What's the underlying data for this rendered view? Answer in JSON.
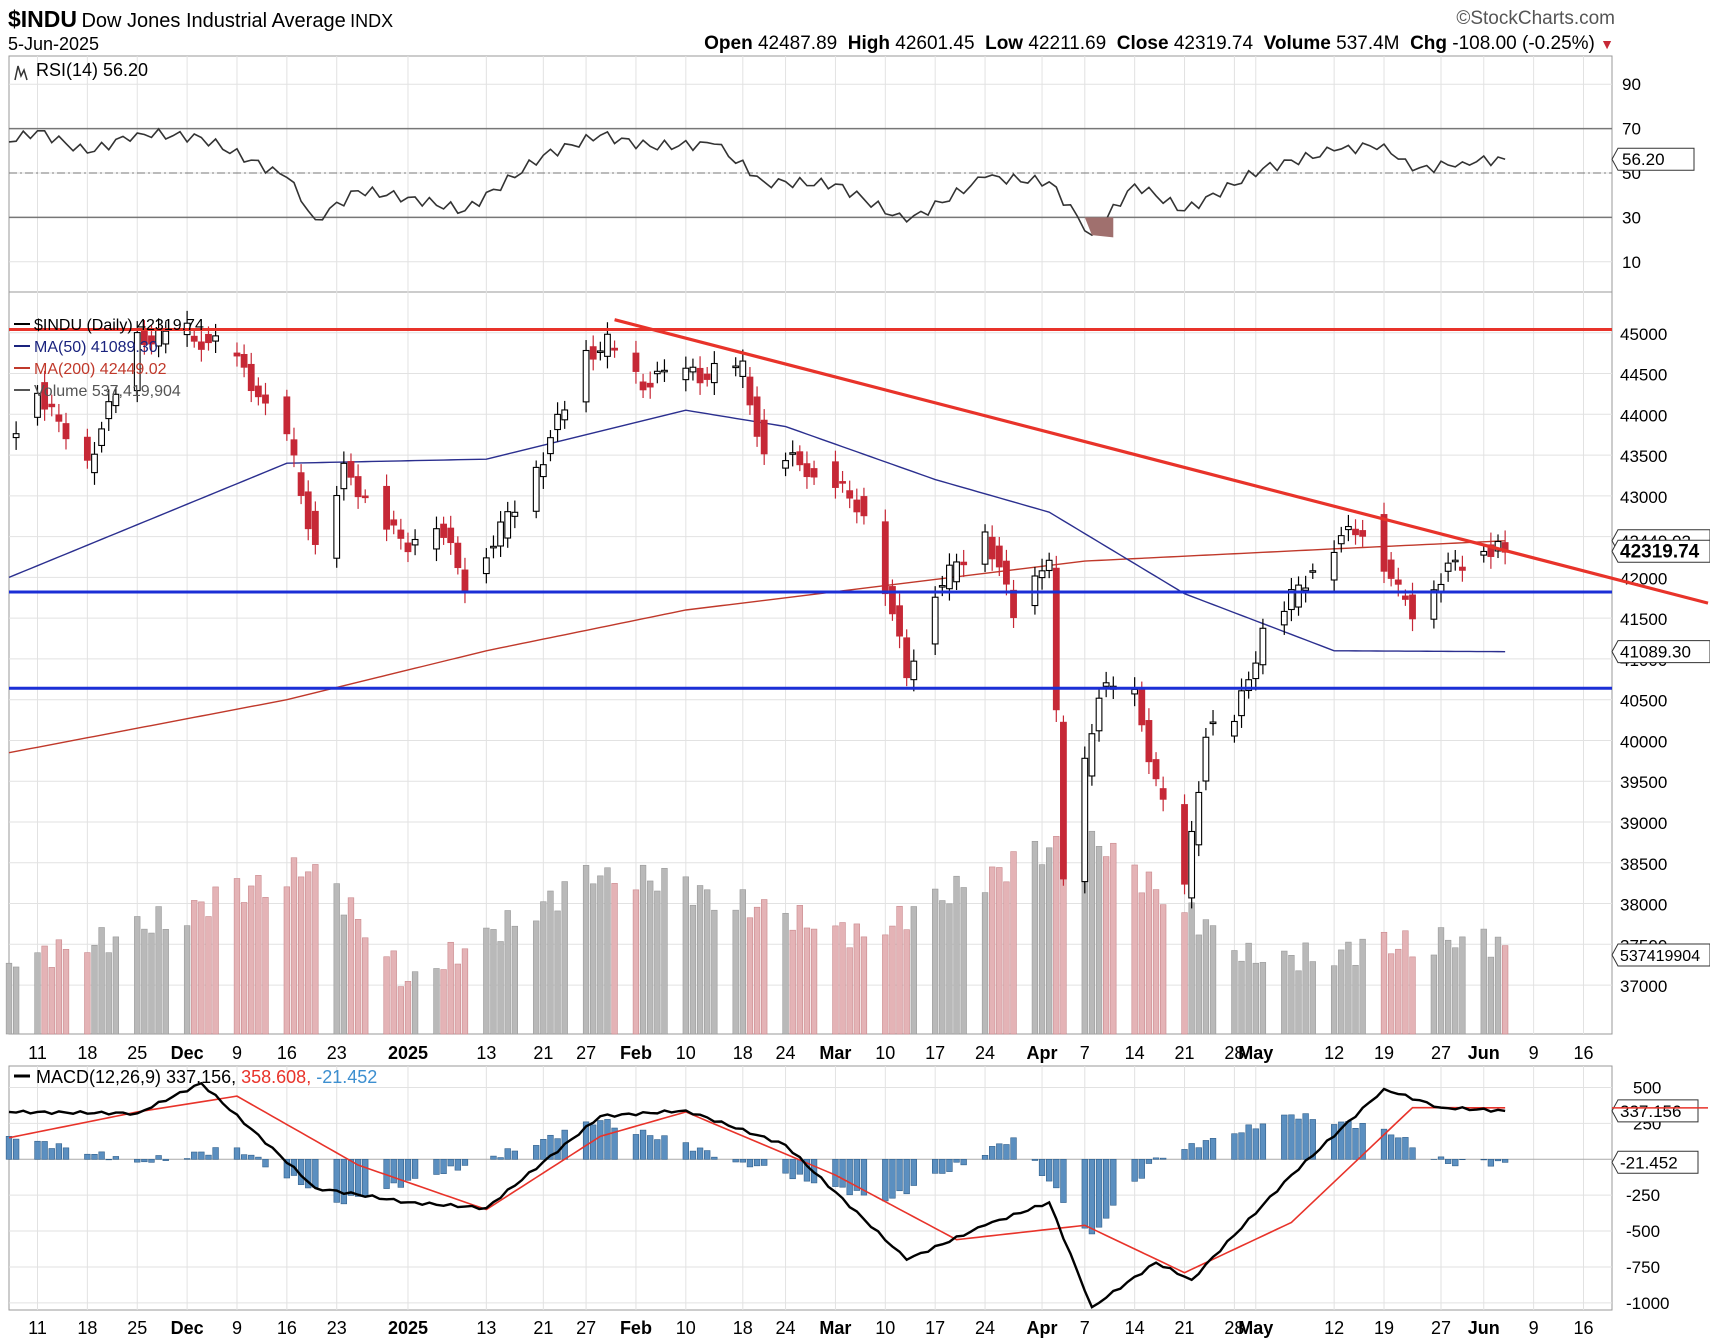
{
  "header": {
    "symbol": "$INDU",
    "name": "Dow Jones Industrial Average",
    "exchange": "INDX",
    "date": "5-Jun-2025",
    "brand": "©StockCharts.com",
    "open_label": "Open",
    "open": "42487.89",
    "high_label": "High",
    "high": "42601.45",
    "low_label": "Low",
    "low": "42211.69",
    "close_label": "Close",
    "close": "42319.74",
    "volume_label": "Volume",
    "volume": "537.4M",
    "chg_label": "Chg",
    "chg": "-108.00 (-0.25%)"
  },
  "rsi": {
    "label": "RSI(14) 56.20",
    "badge": "56.20",
    "ticks": [
      90,
      70,
      50,
      30,
      10
    ],
    "range": [
      0,
      100
    ],
    "overbought": 70,
    "oversold": 30,
    "centerline": 50
  },
  "price_panel": {
    "legend": [
      "$INDU (Daily) 42319.74",
      "MA(50) 41089.30",
      "MA(200) 42449.02",
      "Volume 537,419,904"
    ],
    "legend_colors": [
      "#000000",
      "#1a237e",
      "#c0392b",
      "#555555"
    ],
    "close_badge": "42319.74",
    "ma200_badge": "42449.02",
    "ma50_badge": "41089.30",
    "volume_badge": "537419904",
    "ticks": [
      45000,
      44500,
      44000,
      43500,
      43000,
      42500,
      42000,
      41500,
      41000,
      40500,
      40000,
      39500,
      39000,
      38500,
      38000,
      37500,
      37000
    ],
    "range": [
      36400,
      45500
    ],
    "resistance": 45040,
    "support_upper": 41820,
    "support_lower": 40640,
    "trendline": {
      "from": [
        "2025-01-31",
        45160
      ],
      "to": [
        "2025-06-16",
        42080
      ]
    },
    "colors": {
      "up": "#ffffff",
      "down": "#c62836",
      "grid": "#d9d9d9",
      "line_red": "#e8332a",
      "line_blue": "#1b2fd6"
    }
  },
  "macd": {
    "label_prefix": "MACD(12,26,9)",
    "macd_value": "337.156",
    "signal_value": "358.608",
    "hist_value": "-21.452",
    "badge_macd": "337.156",
    "badge_hist": "-21.452",
    "ticks": [
      500,
      250,
      -250,
      -500,
      -750,
      -1000
    ],
    "range": [
      -1050,
      650
    ],
    "colors": {
      "macd": "#000000",
      "signal": "#e8332a",
      "hist": "#5b8fc0"
    }
  },
  "x_axis": {
    "labels": [
      {
        "t": "11",
        "bold": false
      },
      {
        "t": "18",
        "bold": false
      },
      {
        "t": "25",
        "bold": false
      },
      {
        "t": "Dec",
        "bold": true
      },
      {
        "t": "9",
        "bold": false
      },
      {
        "t": "16",
        "bold": false
      },
      {
        "t": "23",
        "bold": false
      },
      {
        "t": "2025",
        "bold": true
      },
      {
        "t": "13",
        "bold": false
      },
      {
        "t": "21",
        "bold": false
      },
      {
        "t": "27",
        "bold": false
      },
      {
        "t": "Feb",
        "bold": true
      },
      {
        "t": "10",
        "bold": false
      },
      {
        "t": "18",
        "bold": false
      },
      {
        "t": "24",
        "bold": false
      },
      {
        "t": "Mar",
        "bold": true
      },
      {
        "t": "10",
        "bold": false
      },
      {
        "t": "17",
        "bold": false
      },
      {
        "t": "24",
        "bold": false
      },
      {
        "t": "Apr",
        "bold": true
      },
      {
        "t": "7",
        "bold": false
      },
      {
        "t": "14",
        "bold": false
      },
      {
        "t": "21",
        "bold": false
      },
      {
        "t": "28",
        "bold": false
      },
      {
        "t": "May",
        "bold": true
      },
      {
        "t": "12",
        "bold": false
      },
      {
        "t": "19",
        "bold": false
      },
      {
        "t": "27",
        "bold": false
      },
      {
        "t": "Jun",
        "bold": true
      },
      {
        "t": "9",
        "bold": false
      },
      {
        "t": "16",
        "bold": false
      }
    ]
  },
  "chart_data": {
    "type": "candlestick",
    "title": "$INDU Dow Jones Industrial Average INDX",
    "x_range": [
      "2024-11-07",
      "2025-06-20"
    ],
    "price_series": [
      {
        "date": "2024-11-07",
        "close": 43730
      },
      {
        "date": "2024-11-11",
        "close": 44290
      },
      {
        "date": "2024-11-18",
        "close": 43400
      },
      {
        "date": "2024-11-25",
        "close": 44910
      },
      {
        "date": "2024-12-02",
        "close": 45010
      },
      {
        "date": "2024-12-09",
        "close": 44640
      },
      {
        "date": "2024-12-16",
        "close": 43750
      },
      {
        "date": "2024-12-20",
        "close": 42340
      },
      {
        "date": "2024-12-24",
        "close": 43300
      },
      {
        "date": "2025-01-02",
        "close": 42390
      },
      {
        "date": "2025-01-06",
        "close": 42700
      },
      {
        "date": "2025-01-10",
        "close": 41940
      },
      {
        "date": "2025-01-13",
        "close": 42300
      },
      {
        "date": "2025-01-21",
        "close": 43490
      },
      {
        "date": "2025-01-27",
        "close": 44710
      },
      {
        "date": "2025-01-30",
        "close": 44880
      },
      {
        "date": "2025-02-03",
        "close": 44420
      },
      {
        "date": "2025-02-10",
        "close": 44470
      },
      {
        "date": "2025-02-18",
        "close": 44560
      },
      {
        "date": "2025-02-21",
        "close": 43430
      },
      {
        "date": "2025-02-24",
        "close": 43460
      },
      {
        "date": "2025-03-03",
        "close": 43190
      },
      {
        "date": "2025-03-07",
        "close": 42800
      },
      {
        "date": "2025-03-10",
        "close": 41910
      },
      {
        "date": "2025-03-13",
        "close": 40810
      },
      {
        "date": "2025-03-17",
        "close": 41840
      },
      {
        "date": "2025-03-24",
        "close": 42580
      },
      {
        "date": "2025-03-28",
        "close": 41580
      },
      {
        "date": "2025-04-02",
        "close": 42230
      },
      {
        "date": "2025-04-04",
        "close": 38310
      },
      {
        "date": "2025-04-09",
        "close": 40600
      },
      {
        "date": "2025-04-14",
        "close": 40520
      },
      {
        "date": "2025-04-21",
        "close": 38170
      },
      {
        "date": "2025-04-24",
        "close": 40090
      },
      {
        "date": "2025-04-28",
        "close": 40230
      },
      {
        "date": "2025-05-02",
        "close": 41320
      },
      {
        "date": "2025-05-12",
        "close": 42410
      },
      {
        "date": "2025-05-16",
        "close": 42650
      },
      {
        "date": "2025-05-21",
        "close": 41860
      },
      {
        "date": "2025-05-23",
        "close": 41600
      },
      {
        "date": "2025-05-28",
        "close": 42100
      },
      {
        "date": "2025-06-02",
        "close": 42300
      },
      {
        "date": "2025-06-04",
        "close": 42430
      },
      {
        "date": "2025-06-05",
        "close": 42320
      }
    ],
    "ma50_series": [
      {
        "date": "2024-11-07",
        "value": 42000
      },
      {
        "date": "2024-12-16",
        "value": 43400
      },
      {
        "date": "2025-01-13",
        "value": 43450
      },
      {
        "date": "2025-02-10",
        "value": 44050
      },
      {
        "date": "2025-02-24",
        "value": 43850
      },
      {
        "date": "2025-03-17",
        "value": 43200
      },
      {
        "date": "2025-04-02",
        "value": 42800
      },
      {
        "date": "2025-04-21",
        "value": 41800
      },
      {
        "date": "2025-05-12",
        "value": 41100
      },
      {
        "date": "2025-06-05",
        "value": 41089
      }
    ],
    "ma200_series": [
      {
        "date": "2024-11-07",
        "value": 39850
      },
      {
        "date": "2024-12-16",
        "value": 40500
      },
      {
        "date": "2025-01-13",
        "value": 41100
      },
      {
        "date": "2025-02-10",
        "value": 41600
      },
      {
        "date": "2025-03-10",
        "value": 41900
      },
      {
        "date": "2025-04-07",
        "value": 42200
      },
      {
        "date": "2025-05-12",
        "value": 42350
      },
      {
        "date": "2025-06-05",
        "value": 42449
      }
    ],
    "rsi_series": [
      {
        "date": "2024-11-07",
        "value": 64
      },
      {
        "date": "2024-11-11",
        "value": 69
      },
      {
        "date": "2024-11-18",
        "value": 59
      },
      {
        "date": "2024-11-25",
        "value": 68
      },
      {
        "date": "2024-12-04",
        "value": 66
      },
      {
        "date": "2024-12-16",
        "value": 48
      },
      {
        "date": "2024-12-20",
        "value": 29
      },
      {
        "date": "2024-12-26",
        "value": 42
      },
      {
        "date": "2025-01-02",
        "value": 39
      },
      {
        "date": "2025-01-10",
        "value": 33
      },
      {
        "date": "2025-01-21",
        "value": 58
      },
      {
        "date": "2025-01-29",
        "value": 67
      },
      {
        "date": "2025-02-05",
        "value": 62
      },
      {
        "date": "2025-02-14",
        "value": 63
      },
      {
        "date": "2025-02-21",
        "value": 46
      },
      {
        "date": "2025-03-03",
        "value": 45
      },
      {
        "date": "2025-03-13",
        "value": 28
      },
      {
        "date": "2025-03-24",
        "value": 48
      },
      {
        "date": "2025-04-02",
        "value": 46
      },
      {
        "date": "2025-04-08",
        "value": 22
      },
      {
        "date": "2025-04-14",
        "value": 45
      },
      {
        "date": "2025-04-21",
        "value": 33
      },
      {
        "date": "2025-05-02",
        "value": 52
      },
      {
        "date": "2025-05-12",
        "value": 60
      },
      {
        "date": "2025-05-19",
        "value": 63
      },
      {
        "date": "2025-05-23",
        "value": 51
      },
      {
        "date": "2025-05-30",
        "value": 55
      },
      {
        "date": "2025-06-05",
        "value": 56.2
      }
    ],
    "macd_series": [
      {
        "date": "2024-11-07",
        "value": 330
      },
      {
        "date": "2024-11-25",
        "value": 320
      },
      {
        "date": "2024-12-04",
        "value": 530
      },
      {
        "date": "2024-12-20",
        "value": -200
      },
      {
        "date": "2025-01-02",
        "value": -300
      },
      {
        "date": "2025-01-13",
        "value": -340
      },
      {
        "date": "2025-01-29",
        "value": 300
      },
      {
        "date": "2025-02-10",
        "value": 340
      },
      {
        "date": "2025-02-24",
        "value": 100
      },
      {
        "date": "2025-03-13",
        "value": -700
      },
      {
        "date": "2025-03-24",
        "value": -460
      },
      {
        "date": "2025-04-02",
        "value": -300
      },
      {
        "date": "2025-04-08",
        "value": -1030
      },
      {
        "date": "2025-04-17",
        "value": -720
      },
      {
        "date": "2025-04-22",
        "value": -840
      },
      {
        "date": "2025-05-06",
        "value": -110
      },
      {
        "date": "2025-05-19",
        "value": 490
      },
      {
        "date": "2025-05-27",
        "value": 360
      },
      {
        "date": "2025-06-05",
        "value": 337.156
      }
    ],
    "signal_series": [
      {
        "date": "2024-11-07",
        "value": 150
      },
      {
        "date": "2024-11-25",
        "value": 330
      },
      {
        "date": "2024-12-09",
        "value": 440
      },
      {
        "date": "2024-12-26",
        "value": -40
      },
      {
        "date": "2025-01-13",
        "value": -350
      },
      {
        "date": "2025-01-29",
        "value": 160
      },
      {
        "date": "2025-02-10",
        "value": 330
      },
      {
        "date": "2025-03-03",
        "value": -110
      },
      {
        "date": "2025-03-20",
        "value": -560
      },
      {
        "date": "2025-04-07",
        "value": -460
      },
      {
        "date": "2025-04-21",
        "value": -790
      },
      {
        "date": "2025-05-06",
        "value": -440
      },
      {
        "date": "2025-05-23",
        "value": 360
      },
      {
        "date": "2025-06-05",
        "value": 358.608
      }
    ],
    "hist_series": [
      {
        "date": "2024-11-07",
        "value": 160
      },
      {
        "date": "2024-11-25",
        "value": -20
      },
      {
        "date": "2024-12-09",
        "value": 80
      },
      {
        "date": "2024-12-23",
        "value": -300
      },
      {
        "date": "2025-01-13",
        "value": 0
      },
      {
        "date": "2025-01-29",
        "value": 270
      },
      {
        "date": "2025-02-18",
        "value": -20
      },
      {
        "date": "2025-03-10",
        "value": -290
      },
      {
        "date": "2025-03-28",
        "value": 150
      },
      {
        "date": "2025-04-08",
        "value": -520
      },
      {
        "date": "2025-04-17",
        "value": 10
      },
      {
        "date": "2025-05-06",
        "value": 310
      },
      {
        "date": "2025-05-19",
        "value": 210
      },
      {
        "date": "2025-05-28",
        "value": -30
      },
      {
        "date": "2025-06-05",
        "value": -21.452
      }
    ],
    "volume_series": [
      {
        "date": "2024-11-07",
        "value": 430
      },
      {
        "date": "2024-11-22",
        "value": 590
      },
      {
        "date": "2024-12-20",
        "value": 1030
      },
      {
        "date": "2025-01-02",
        "value": 320
      },
      {
        "date": "2025-01-30",
        "value": 1010
      },
      {
        "date": "2025-03-07",
        "value": 590
      },
      {
        "date": "2025-03-21",
        "value": 890
      },
      {
        "date": "2025-04-04",
        "value": 1160
      },
      {
        "date": "2025-04-09",
        "value": 1140
      },
      {
        "date": "2025-05-01",
        "value": 430
      },
      {
        "date": "2025-05-30",
        "value": 590
      },
      {
        "date": "2025-06-05",
        "value": 537
      }
    ]
  }
}
